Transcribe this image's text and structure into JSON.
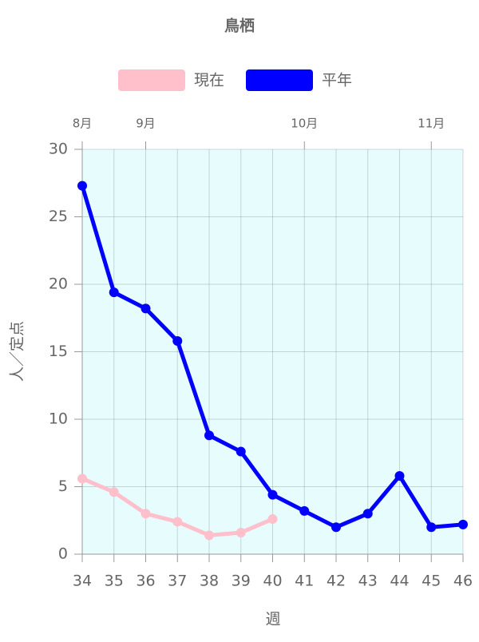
{
  "chart_data": {
    "type": "line",
    "title": "鳥栖",
    "x_label": "週",
    "y_label": "人／定点",
    "x": [
      34,
      35,
      36,
      37,
      38,
      39,
      40,
      41,
      42,
      43,
      44,
      45,
      46
    ],
    "series": [
      {
        "name": "現在",
        "color": "#ffc0cb",
        "values": [
          5.6,
          4.6,
          3.0,
          2.4,
          1.4,
          1.6,
          2.6,
          null,
          null,
          null,
          null,
          null,
          null
        ]
      },
      {
        "name": "平年",
        "color": "#0000ff",
        "values": [
          27.3,
          19.4,
          18.2,
          15.8,
          8.8,
          7.6,
          4.4,
          3.2,
          2.0,
          3.0,
          5.8,
          2.0,
          2.2
        ]
      }
    ],
    "xlim": [
      34,
      46
    ],
    "xticks": [
      34,
      35,
      36,
      37,
      38,
      39,
      40,
      41,
      42,
      43,
      44,
      45,
      46
    ],
    "ylim": [
      0,
      30
    ],
    "yticks": [
      0,
      5,
      10,
      15,
      20,
      25,
      30
    ],
    "top_ticks": [
      {
        "value": 34,
        "label": "8月"
      },
      {
        "value": 36,
        "label": "9月"
      },
      {
        "value": 41,
        "label": "10月"
      },
      {
        "value": 45,
        "label": "11月"
      }
    ],
    "plot_background": "#e6fcfd",
    "grid": true,
    "legend": "top"
  }
}
